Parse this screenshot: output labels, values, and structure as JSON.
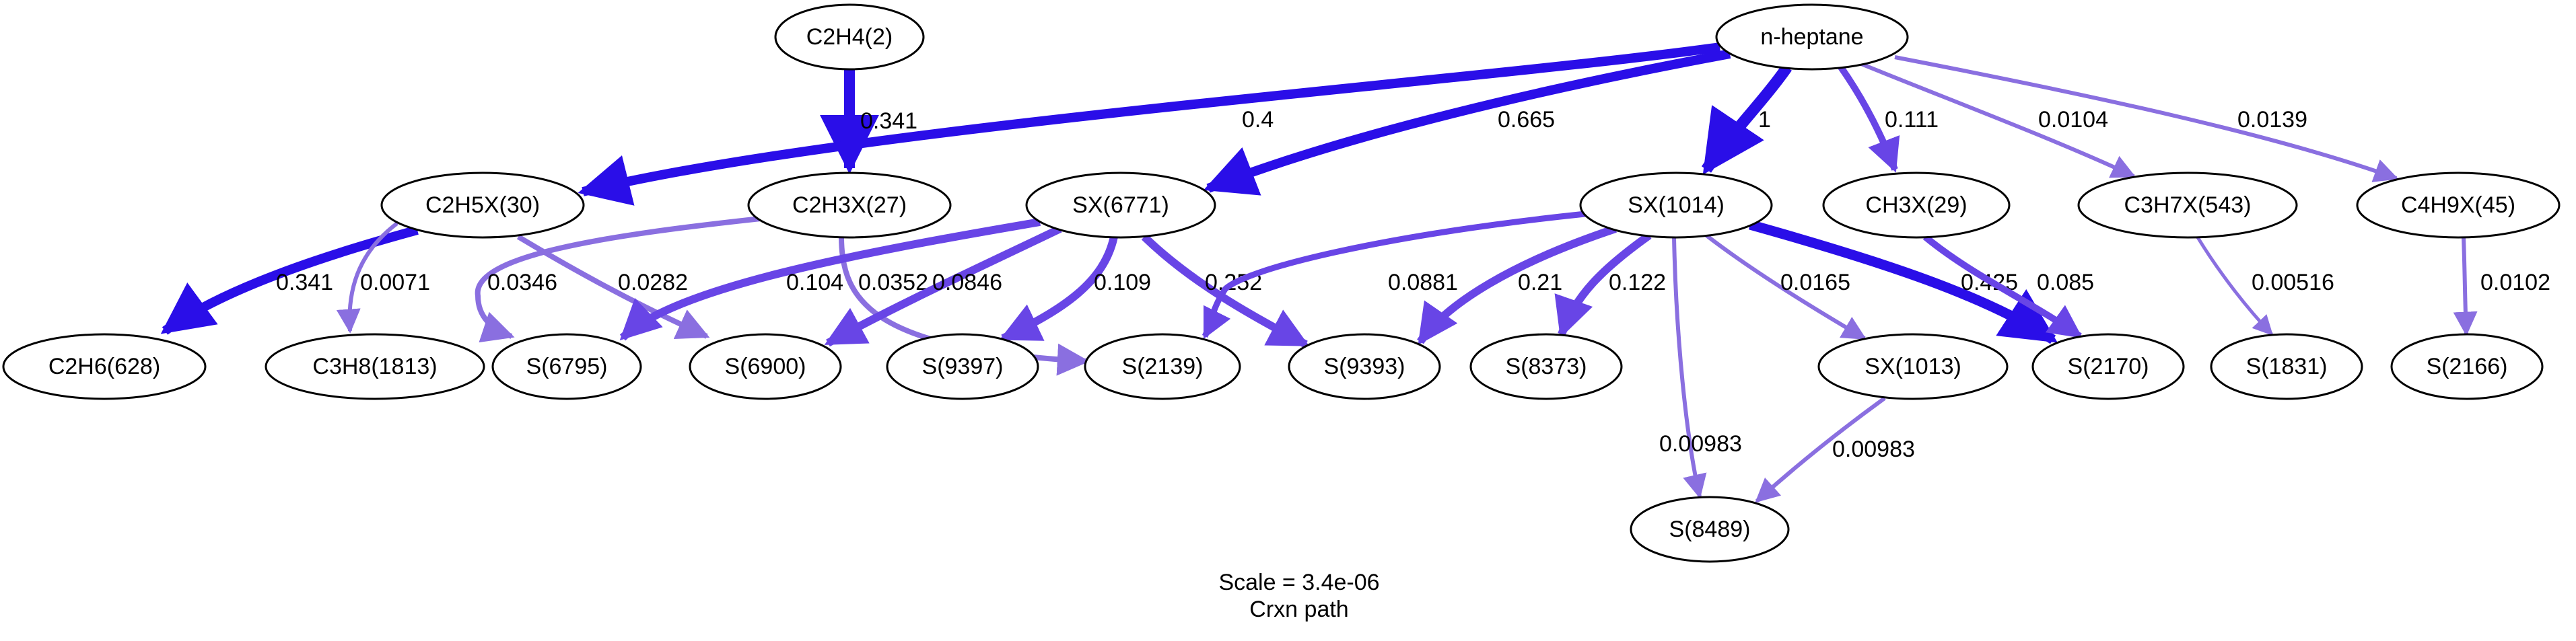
{
  "colors": {
    "strong": "#2a0ee8",
    "medium": "#6845e6",
    "light": "#8a6fe0"
  },
  "nodes": [
    {
      "id": "c2h4",
      "label": "C2H4(2)"
    },
    {
      "id": "nhep",
      "label": "n-heptane"
    },
    {
      "id": "c2h5x",
      "label": "C2H5X(30)"
    },
    {
      "id": "c2h3x",
      "label": "C2H3X(27)"
    },
    {
      "id": "sx6771",
      "label": "SX(6771)"
    },
    {
      "id": "sx1014",
      "label": "SX(1014)"
    },
    {
      "id": "ch3x",
      "label": "CH3X(29)"
    },
    {
      "id": "c3h7x",
      "label": "C3H7X(543)"
    },
    {
      "id": "c4h9x",
      "label": "C4H9X(45)"
    },
    {
      "id": "c2h6",
      "label": "C2H6(628)"
    },
    {
      "id": "c3h8",
      "label": "C3H8(1813)"
    },
    {
      "id": "s6795",
      "label": "S(6795)"
    },
    {
      "id": "s6900",
      "label": "S(6900)"
    },
    {
      "id": "s9397",
      "label": "S(9397)"
    },
    {
      "id": "s2139",
      "label": "S(2139)"
    },
    {
      "id": "s9393",
      "label": "S(9393)"
    },
    {
      "id": "s8373",
      "label": "S(8373)"
    },
    {
      "id": "sx1013",
      "label": "SX(1013)"
    },
    {
      "id": "s2170",
      "label": "S(2170)"
    },
    {
      "id": "s1831",
      "label": "S(1831)"
    },
    {
      "id": "s2166",
      "label": "S(2166)"
    },
    {
      "id": "s8489",
      "label": "S(8489)"
    }
  ],
  "edges": [
    {
      "from": "c2h4",
      "to": "c2h3x",
      "label": "0.341",
      "weight": "strong"
    },
    {
      "from": "nhep",
      "to": "c2h5x",
      "label": "0.4",
      "weight": "strong"
    },
    {
      "from": "nhep",
      "to": "sx6771",
      "label": "0.665",
      "weight": "strong"
    },
    {
      "from": "nhep",
      "to": "sx1014",
      "label": "1",
      "weight": "strong"
    },
    {
      "from": "nhep",
      "to": "ch3x",
      "label": "0.111",
      "weight": "medium"
    },
    {
      "from": "nhep",
      "to": "c3h7x",
      "label": "0.0104",
      "weight": "light"
    },
    {
      "from": "nhep",
      "to": "c4h9x",
      "label": "0.0139",
      "weight": "light"
    },
    {
      "from": "c2h5x",
      "to": "c2h6",
      "label": "0.341",
      "weight": "strong"
    },
    {
      "from": "c2h5x",
      "to": "c3h8",
      "label": "0.0071",
      "weight": "light"
    },
    {
      "from": "c2h5x",
      "to": "s6900",
      "label": "0.0282",
      "weight": "light"
    },
    {
      "from": "c2h3x",
      "to": "s6795",
      "label": "0.0346",
      "weight": "light"
    },
    {
      "from": "c2h3x",
      "to": "s2139",
      "label": "0.0352",
      "weight": "light"
    },
    {
      "from": "sx6771",
      "to": "s6795",
      "label": "0.104",
      "weight": "medium"
    },
    {
      "from": "sx6771",
      "to": "s6900",
      "label": "0.0846",
      "weight": "medium"
    },
    {
      "from": "sx6771",
      "to": "s9397",
      "label": "0.109",
      "weight": "medium"
    },
    {
      "from": "sx6771",
      "to": "s9393",
      "label": "0.252",
      "weight": "medium"
    },
    {
      "from": "sx1014",
      "to": "s2139",
      "label": "0.0881",
      "weight": "medium"
    },
    {
      "from": "sx1014",
      "to": "s9393",
      "label": "0.21",
      "weight": "medium"
    },
    {
      "from": "sx1014",
      "to": "s8373",
      "label": "0.122",
      "weight": "medium"
    },
    {
      "from": "sx1014",
      "to": "sx1013",
      "label": "0.0165",
      "weight": "light"
    },
    {
      "from": "sx1014",
      "to": "s2170",
      "label": "0.425",
      "weight": "strong"
    },
    {
      "from": "sx1014",
      "to": "s8489",
      "label": "0.00983",
      "weight": "light"
    },
    {
      "from": "ch3x",
      "to": "s2170",
      "label": "0.085",
      "weight": "medium"
    },
    {
      "from": "c3h7x",
      "to": "s1831",
      "label": "0.00516",
      "weight": "light"
    },
    {
      "from": "c4h9x",
      "to": "s2166",
      "label": "0.0102",
      "weight": "light"
    },
    {
      "from": "sx1013",
      "to": "s8489",
      "label": "0.00983",
      "weight": "light"
    }
  ],
  "caption": {
    "scale": "Scale = 3.4e-06",
    "title": "Crxn path"
  }
}
